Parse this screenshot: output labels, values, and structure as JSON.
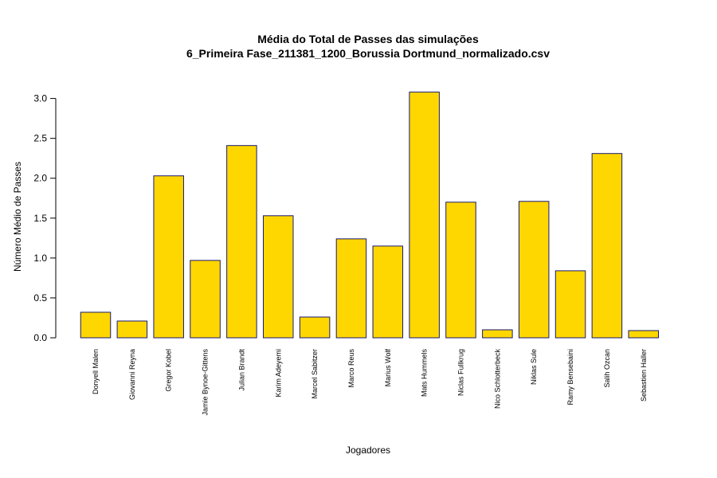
{
  "chart_data": {
    "type": "bar",
    "title": "Média do Total de Passes das simulações",
    "subtitle": "6_Primeira Fase_211381_1200_Borussia Dortmund_normalizado.csv",
    "xlabel": "Jogadores",
    "ylabel": "Número Médio de Passes",
    "ylim": [
      0,
      3.0
    ],
    "yticks": [
      "0.0",
      "0.5",
      "1.0",
      "1.5",
      "2.0",
      "2.5",
      "3.0"
    ],
    "grid": false,
    "bar_fill": "#FFD700",
    "bar_border": "#191970",
    "categories": [
      "Donyell Malen",
      "Giovanni Reyna",
      "Gregor Kobel",
      "Jamie Bynoe-Gittens",
      "Julian Brandt",
      "Karim Adeyemi",
      "Marcel Sabitzer",
      "Marco Reus",
      "Marius Wolf",
      "Mats Hummels",
      "Niclas Fullkrug",
      "Nico Schlotterbeck",
      "Niklas Sule",
      "Ramy Bensebaini",
      "Salih Ozcan",
      "Sebastien Haller"
    ],
    "values": [
      0.32,
      0.21,
      2.03,
      0.97,
      2.41,
      1.53,
      0.26,
      1.24,
      1.15,
      3.08,
      1.7,
      0.1,
      1.71,
      0.84,
      2.31,
      0.09
    ]
  }
}
